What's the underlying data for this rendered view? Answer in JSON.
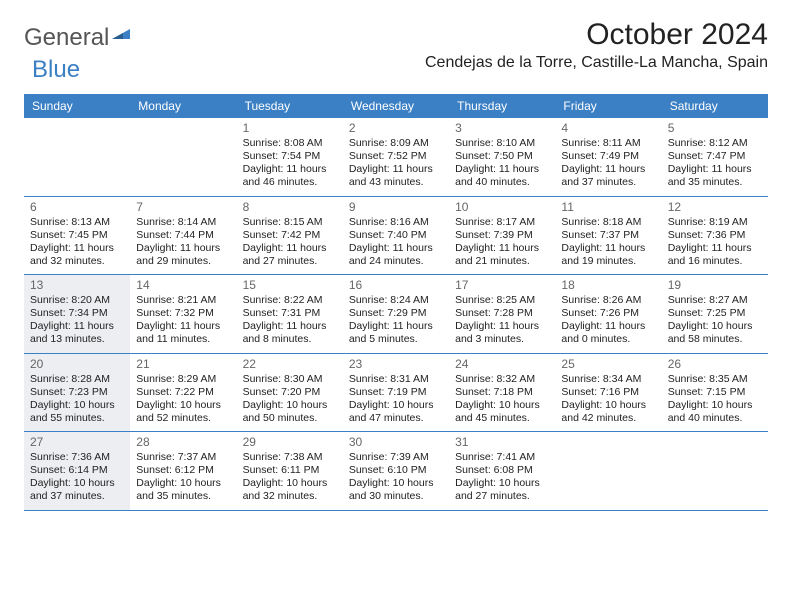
{
  "logo": {
    "part1": "General",
    "part2": "Blue"
  },
  "title": "October 2024",
  "location": "Cendejas de la Torre, Castille-La Mancha, Spain",
  "colors": {
    "header_bg": "#3b7fc4",
    "shaded_bg": "#eceef1",
    "border": "#3b7fc4"
  },
  "dayNames": [
    "Sunday",
    "Monday",
    "Tuesday",
    "Wednesday",
    "Thursday",
    "Friday",
    "Saturday"
  ],
  "weeks": [
    [
      null,
      null,
      {
        "n": "1",
        "sr": "Sunrise: 8:08 AM",
        "ss": "Sunset: 7:54 PM",
        "d1": "Daylight: 11 hours",
        "d2": "and 46 minutes."
      },
      {
        "n": "2",
        "sr": "Sunrise: 8:09 AM",
        "ss": "Sunset: 7:52 PM",
        "d1": "Daylight: 11 hours",
        "d2": "and 43 minutes."
      },
      {
        "n": "3",
        "sr": "Sunrise: 8:10 AM",
        "ss": "Sunset: 7:50 PM",
        "d1": "Daylight: 11 hours",
        "d2": "and 40 minutes."
      },
      {
        "n": "4",
        "sr": "Sunrise: 8:11 AM",
        "ss": "Sunset: 7:49 PM",
        "d1": "Daylight: 11 hours",
        "d2": "and 37 minutes."
      },
      {
        "n": "5",
        "sr": "Sunrise: 8:12 AM",
        "ss": "Sunset: 7:47 PM",
        "d1": "Daylight: 11 hours",
        "d2": "and 35 minutes."
      }
    ],
    [
      {
        "n": "6",
        "sr": "Sunrise: 8:13 AM",
        "ss": "Sunset: 7:45 PM",
        "d1": "Daylight: 11 hours",
        "d2": "and 32 minutes."
      },
      {
        "n": "7",
        "sr": "Sunrise: 8:14 AM",
        "ss": "Sunset: 7:44 PM",
        "d1": "Daylight: 11 hours",
        "d2": "and 29 minutes."
      },
      {
        "n": "8",
        "sr": "Sunrise: 8:15 AM",
        "ss": "Sunset: 7:42 PM",
        "d1": "Daylight: 11 hours",
        "d2": "and 27 minutes."
      },
      {
        "n": "9",
        "sr": "Sunrise: 8:16 AM",
        "ss": "Sunset: 7:40 PM",
        "d1": "Daylight: 11 hours",
        "d2": "and 24 minutes."
      },
      {
        "n": "10",
        "sr": "Sunrise: 8:17 AM",
        "ss": "Sunset: 7:39 PM",
        "d1": "Daylight: 11 hours",
        "d2": "and 21 minutes."
      },
      {
        "n": "11",
        "sr": "Sunrise: 8:18 AM",
        "ss": "Sunset: 7:37 PM",
        "d1": "Daylight: 11 hours",
        "d2": "and 19 minutes."
      },
      {
        "n": "12",
        "sr": "Sunrise: 8:19 AM",
        "ss": "Sunset: 7:36 PM",
        "d1": "Daylight: 11 hours",
        "d2": "and 16 minutes."
      }
    ],
    [
      {
        "n": "13",
        "sr": "Sunrise: 8:20 AM",
        "ss": "Sunset: 7:34 PM",
        "d1": "Daylight: 11 hours",
        "d2": "and 13 minutes.",
        "shaded": true
      },
      {
        "n": "14",
        "sr": "Sunrise: 8:21 AM",
        "ss": "Sunset: 7:32 PM",
        "d1": "Daylight: 11 hours",
        "d2": "and 11 minutes."
      },
      {
        "n": "15",
        "sr": "Sunrise: 8:22 AM",
        "ss": "Sunset: 7:31 PM",
        "d1": "Daylight: 11 hours",
        "d2": "and 8 minutes."
      },
      {
        "n": "16",
        "sr": "Sunrise: 8:24 AM",
        "ss": "Sunset: 7:29 PM",
        "d1": "Daylight: 11 hours",
        "d2": "and 5 minutes."
      },
      {
        "n": "17",
        "sr": "Sunrise: 8:25 AM",
        "ss": "Sunset: 7:28 PM",
        "d1": "Daylight: 11 hours",
        "d2": "and 3 minutes."
      },
      {
        "n": "18",
        "sr": "Sunrise: 8:26 AM",
        "ss": "Sunset: 7:26 PM",
        "d1": "Daylight: 11 hours",
        "d2": "and 0 minutes."
      },
      {
        "n": "19",
        "sr": "Sunrise: 8:27 AM",
        "ss": "Sunset: 7:25 PM",
        "d1": "Daylight: 10 hours",
        "d2": "and 58 minutes."
      }
    ],
    [
      {
        "n": "20",
        "sr": "Sunrise: 8:28 AM",
        "ss": "Sunset: 7:23 PM",
        "d1": "Daylight: 10 hours",
        "d2": "and 55 minutes.",
        "shaded": true
      },
      {
        "n": "21",
        "sr": "Sunrise: 8:29 AM",
        "ss": "Sunset: 7:22 PM",
        "d1": "Daylight: 10 hours",
        "d2": "and 52 minutes."
      },
      {
        "n": "22",
        "sr": "Sunrise: 8:30 AM",
        "ss": "Sunset: 7:20 PM",
        "d1": "Daylight: 10 hours",
        "d2": "and 50 minutes."
      },
      {
        "n": "23",
        "sr": "Sunrise: 8:31 AM",
        "ss": "Sunset: 7:19 PM",
        "d1": "Daylight: 10 hours",
        "d2": "and 47 minutes."
      },
      {
        "n": "24",
        "sr": "Sunrise: 8:32 AM",
        "ss": "Sunset: 7:18 PM",
        "d1": "Daylight: 10 hours",
        "d2": "and 45 minutes."
      },
      {
        "n": "25",
        "sr": "Sunrise: 8:34 AM",
        "ss": "Sunset: 7:16 PM",
        "d1": "Daylight: 10 hours",
        "d2": "and 42 minutes."
      },
      {
        "n": "26",
        "sr": "Sunrise: 8:35 AM",
        "ss": "Sunset: 7:15 PM",
        "d1": "Daylight: 10 hours",
        "d2": "and 40 minutes."
      }
    ],
    [
      {
        "n": "27",
        "sr": "Sunrise: 7:36 AM",
        "ss": "Sunset: 6:14 PM",
        "d1": "Daylight: 10 hours",
        "d2": "and 37 minutes.",
        "shaded": true
      },
      {
        "n": "28",
        "sr": "Sunrise: 7:37 AM",
        "ss": "Sunset: 6:12 PM",
        "d1": "Daylight: 10 hours",
        "d2": "and 35 minutes."
      },
      {
        "n": "29",
        "sr": "Sunrise: 7:38 AM",
        "ss": "Sunset: 6:11 PM",
        "d1": "Daylight: 10 hours",
        "d2": "and 32 minutes."
      },
      {
        "n": "30",
        "sr": "Sunrise: 7:39 AM",
        "ss": "Sunset: 6:10 PM",
        "d1": "Daylight: 10 hours",
        "d2": "and 30 minutes."
      },
      {
        "n": "31",
        "sr": "Sunrise: 7:41 AM",
        "ss": "Sunset: 6:08 PM",
        "d1": "Daylight: 10 hours",
        "d2": "and 27 minutes."
      },
      null,
      null
    ]
  ]
}
